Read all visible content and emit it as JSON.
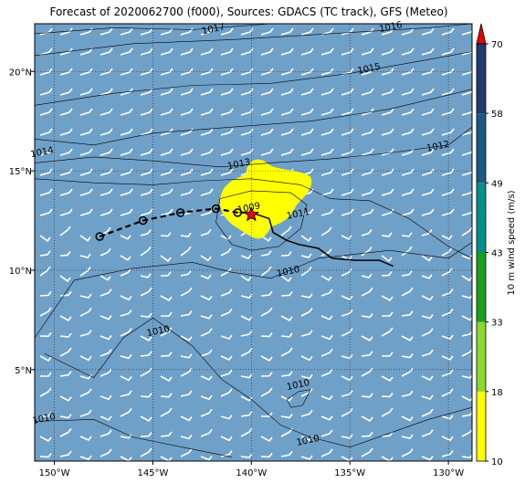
{
  "title": "Forecast of 2020062700 (f000), Sources: GDACS (TC track), GFS (Meteo)",
  "map": {
    "lon_range": [
      -151,
      -128.8
    ],
    "lat_range": [
      0.4,
      22.4
    ],
    "x_tick_labels": [
      "150°W",
      "145°W",
      "140°W",
      "135°W",
      "130°W"
    ],
    "x_tick_values": [
      -150,
      -145,
      -140,
      -135,
      -130
    ],
    "y_tick_labels": [
      "20°N",
      "15°N",
      "10°N",
      "5°N"
    ],
    "y_tick_values": [
      20,
      15,
      10,
      5
    ],
    "ocean_color": "#6fa0c8",
    "grid": "dotted"
  },
  "isobars": [
    {
      "label": "1017",
      "pos": [
        -141.9,
        22.0
      ]
    },
    {
      "label": "1016",
      "pos": [
        -132.9,
        22.1
      ]
    },
    {
      "label": "1015",
      "pos": [
        -134.0,
        20.0
      ]
    },
    {
      "label": "1014",
      "pos": [
        -150.6,
        15.8
      ]
    },
    {
      "label": "1013",
      "pos": [
        -140.6,
        15.2
      ]
    },
    {
      "label": "1012",
      "pos": [
        -130.5,
        16.1
      ]
    },
    {
      "label": "1011",
      "pos": [
        -137.6,
        12.7
      ]
    },
    {
      "label": "1010",
      "pos": [
        -138.1,
        9.8
      ]
    },
    {
      "label": "1009",
      "pos": [
        -140.1,
        13.0
      ]
    },
    {
      "label": "1010",
      "pos": [
        -144.7,
        6.8
      ]
    },
    {
      "label": "1010",
      "pos": [
        -137.6,
        4.1
      ]
    },
    {
      "label": "1010",
      "pos": [
        -150.5,
        2.4
      ]
    },
    {
      "label": "1010",
      "pos": [
        -137.1,
        1.3
      ]
    }
  ],
  "track": {
    "past": [
      [
        -147.7,
        11.7
      ],
      [
        -145.5,
        12.5
      ],
      [
        -143.6,
        12.9
      ],
      [
        -141.8,
        13.1
      ],
      [
        -140.7,
        12.9
      ],
      [
        -140.0,
        12.9
      ]
    ],
    "forecast": [
      [
        -140.0,
        12.9
      ],
      [
        -139.1,
        12.6
      ],
      [
        -138.9,
        11.9
      ],
      [
        -138.2,
        11.5
      ],
      [
        -137.6,
        11.3
      ],
      [
        -136.6,
        11.1
      ],
      [
        -135.9,
        10.6
      ],
      [
        -134.7,
        10.5
      ],
      [
        -133.5,
        10.5
      ],
      [
        -132.8,
        10.2
      ]
    ],
    "center": [
      -140.0,
      12.8
    ]
  },
  "colorbar": {
    "label": "10 m wind speed (m/s)",
    "ticks": [
      "70",
      "58",
      "49",
      "43",
      "33",
      "18",
      "10"
    ],
    "colors": [
      "#ffff00",
      "#88d830",
      "#1aa01a",
      "#00908c",
      "#1a5a82",
      "#223a6e",
      "#e80000"
    ]
  }
}
